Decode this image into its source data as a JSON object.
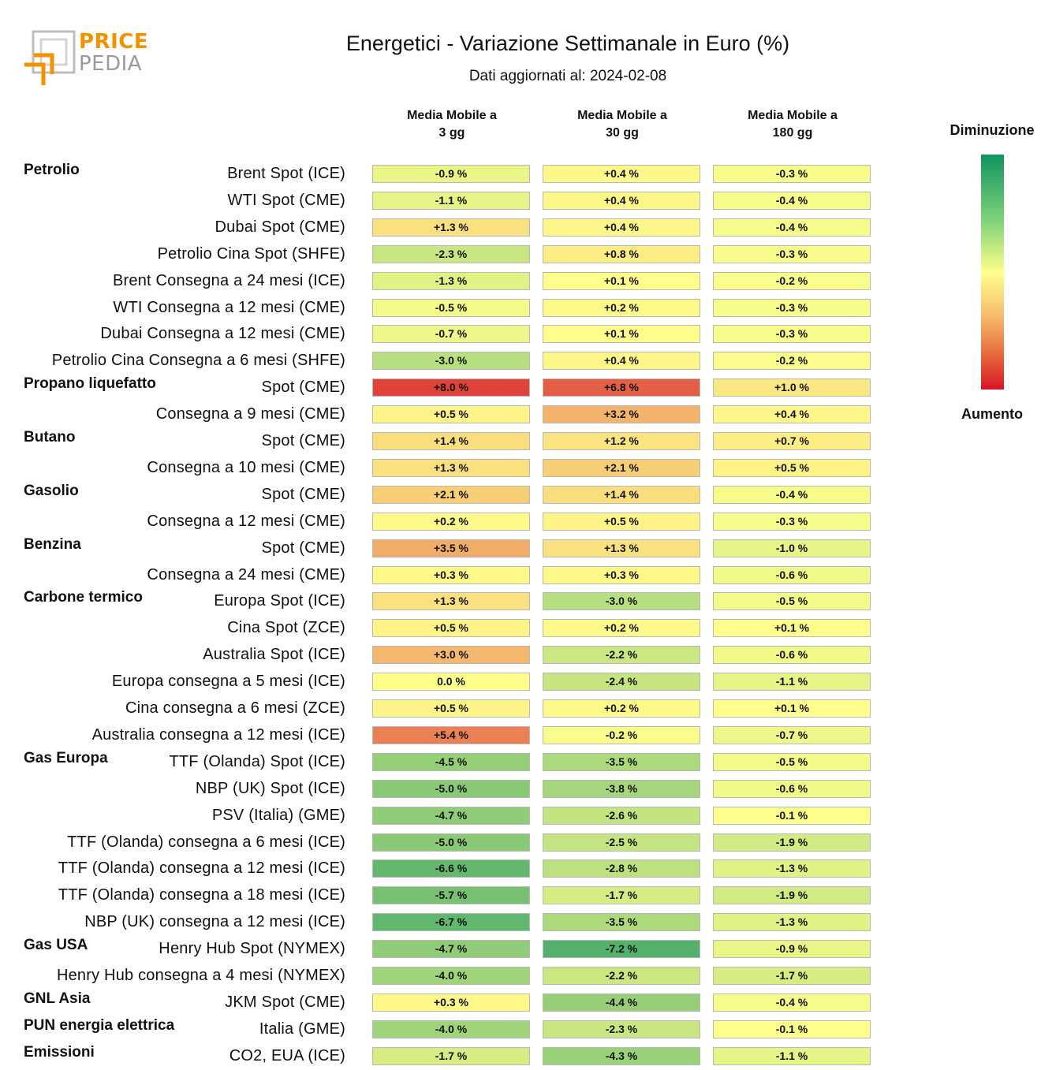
{
  "title": "Energetici - Variazione Settimanale in Euro (%)",
  "subtitle": "Dati aggiornati al: 2024-02-08",
  "logo": {
    "word1": "PRICE",
    "word2": "PEDIA",
    "accent": "#f39200",
    "grey": "#9a9a9a"
  },
  "legend": {
    "top": "Diminuzione",
    "bottom": "Aumento"
  },
  "chart_data": {
    "type": "heatmap",
    "columns": [
      "Media Mobile a\n3 gg",
      "Media Mobile a\n30 gg",
      "Media Mobile a\n180 gg"
    ],
    "value_suffix": " %",
    "color_scale": {
      "decrease": "#12935f",
      "neutral": "#ffff8c",
      "increase": "#d81325"
    },
    "groups": [
      {
        "name": "Petrolio",
        "rows": [
          {
            "label": "Brent Spot (ICE)",
            "values": [
              -0.9,
              0.4,
              -0.3
            ]
          },
          {
            "label": "WTI Spot (CME)",
            "values": [
              -1.1,
              0.4,
              -0.4
            ]
          },
          {
            "label": "Dubai Spot (CME)",
            "values": [
              1.3,
              0.4,
              -0.4
            ]
          },
          {
            "label": "Petrolio Cina Spot (SHFE)",
            "values": [
              -2.3,
              0.8,
              -0.3
            ]
          },
          {
            "label": "Brent Consegna a 24 mesi (ICE)",
            "values": [
              -1.3,
              0.1,
              -0.2
            ]
          },
          {
            "label": "WTI Consegna a 12 mesi (CME)",
            "values": [
              -0.5,
              0.2,
              -0.3
            ]
          },
          {
            "label": "Dubai Consegna a 12 mesi (CME)",
            "values": [
              -0.7,
              0.1,
              -0.3
            ]
          },
          {
            "label": "Petrolio Cina Consegna a 6 mesi (SHFE)",
            "values": [
              -3.0,
              0.4,
              -0.2
            ]
          }
        ]
      },
      {
        "name": "Propano liquefatto",
        "rows": [
          {
            "label": "Spot (CME)",
            "values": [
              8.0,
              6.8,
              1.0
            ]
          },
          {
            "label": "Consegna a 9 mesi (CME)",
            "values": [
              0.5,
              3.2,
              0.4
            ]
          }
        ]
      },
      {
        "name": "Butano",
        "rows": [
          {
            "label": "Spot (CME)",
            "values": [
              1.4,
              1.2,
              0.7
            ]
          },
          {
            "label": "Consegna a 10 mesi (CME)",
            "values": [
              1.3,
              2.1,
              0.5
            ]
          }
        ]
      },
      {
        "name": "Gasolio",
        "rows": [
          {
            "label": "Spot (CME)",
            "values": [
              2.1,
              1.4,
              -0.4
            ]
          },
          {
            "label": "Consegna a 12 mesi (CME)",
            "values": [
              0.2,
              0.5,
              -0.3
            ]
          }
        ]
      },
      {
        "name": "Benzina",
        "rows": [
          {
            "label": "Spot (CME)",
            "values": [
              3.5,
              1.3,
              -1.0
            ]
          },
          {
            "label": "Consegna a 24 mesi (CME)",
            "values": [
              0.3,
              0.3,
              -0.6
            ]
          }
        ]
      },
      {
        "name": "Carbone termico",
        "rows": [
          {
            "label": "Europa Spot (ICE)",
            "values": [
              1.3,
              -3.0,
              -0.5
            ]
          },
          {
            "label": "Cina Spot (ZCE)",
            "values": [
              0.5,
              0.2,
              0.1
            ]
          },
          {
            "label": "Australia Spot (ICE)",
            "values": [
              3.0,
              -2.2,
              -0.6
            ]
          },
          {
            "label": "Europa consegna a 5 mesi (ICE)",
            "values": [
              0.0,
              -2.4,
              -1.1
            ]
          },
          {
            "label": "Cina consegna a 6 mesi (ZCE)",
            "values": [
              0.5,
              0.2,
              0.1
            ]
          },
          {
            "label": "Australia consegna a 12 mesi (ICE)",
            "values": [
              5.4,
              -0.2,
              -0.7
            ]
          }
        ]
      },
      {
        "name": "Gas Europa",
        "rows": [
          {
            "label": "TTF (Olanda) Spot (ICE)",
            "values": [
              -4.5,
              -3.5,
              -0.5
            ]
          },
          {
            "label": "NBP (UK) Spot (ICE)",
            "values": [
              -5.0,
              -3.8,
              -0.6
            ]
          },
          {
            "label": "PSV (Italia) (GME)",
            "values": [
              -4.7,
              -2.6,
              -0.1
            ]
          },
          {
            "label": "TTF (Olanda) consegna a 6 mesi (ICE)",
            "values": [
              -5.0,
              -2.5,
              -1.9
            ]
          },
          {
            "label": "TTF (Olanda) consegna a 12 mesi (ICE)",
            "values": [
              -6.6,
              -2.8,
              -1.3
            ]
          },
          {
            "label": "TTF (Olanda) consegna a 18 mesi (ICE)",
            "values": [
              -5.7,
              -1.7,
              -1.9
            ]
          },
          {
            "label": "NBP (UK) consegna a 12 mesi (ICE)",
            "values": [
              -6.7,
              -3.5,
              -1.3
            ]
          }
        ]
      },
      {
        "name": "Gas USA",
        "rows": [
          {
            "label": "Henry Hub Spot (NYMEX)",
            "values": [
              -4.7,
              -7.2,
              -0.9
            ]
          },
          {
            "label": "Henry Hub consegna a 4 mesi (NYMEX)",
            "values": [
              -4.0,
              -2.2,
              -1.7
            ]
          }
        ]
      },
      {
        "name": "GNL Asia",
        "rows": [
          {
            "label": "JKM Spot (CME)",
            "values": [
              0.3,
              -4.4,
              -0.4
            ]
          }
        ]
      },
      {
        "name": "PUN energia elettrica",
        "rows": [
          {
            "label": "Italia (GME)",
            "values": [
              -4.0,
              -2.3,
              -0.1
            ]
          }
        ]
      },
      {
        "name": "Emissioni",
        "rows": [
          {
            "label": "CO2, EUA (ICE)",
            "values": [
              -1.7,
              -4.3,
              -1.1
            ]
          }
        ]
      }
    ]
  }
}
